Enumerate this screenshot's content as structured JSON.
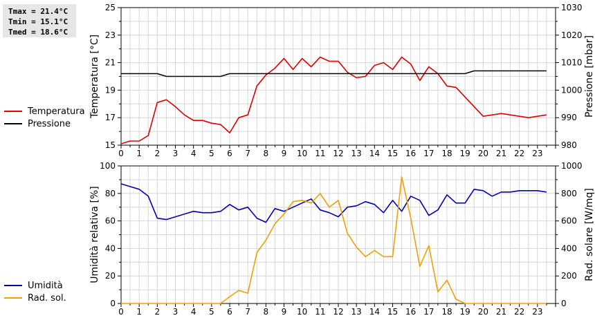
{
  "stats": {
    "tmax": "Tmax = 21.4°C",
    "tmin": "Tmin = 15.1°C",
    "tmed": "Tmed = 18.6°C"
  },
  "legend_top": [
    {
      "label": "Temperatura",
      "color": "#dd0000"
    },
    {
      "label": "Pressione",
      "color": "#000000"
    }
  ],
  "legend_bottom": [
    {
      "label": "Umidità",
      "color": "#0000b0"
    },
    {
      "label": "Rad. sol.",
      "color": "#f0a000"
    }
  ],
  "chart_data": [
    {
      "type": "line",
      "xlim": [
        0,
        24
      ],
      "x_ticks": [
        "0",
        "1",
        "2",
        "3",
        "4",
        "5",
        "6",
        "7",
        "8",
        "9",
        "10",
        "11",
        "12",
        "13",
        "14",
        "15",
        "16",
        "17",
        "18",
        "19",
        "20",
        "21",
        "22",
        "23"
      ],
      "ylabel": "Temperatura [°C]",
      "ylim": [
        15,
        25
      ],
      "y_ticks": [
        "15",
        "17",
        "19",
        "21",
        "23",
        "25"
      ],
      "y2label": "Pressione [mbar]",
      "y2lim": [
        980,
        1030
      ],
      "y2_ticks": [
        "980",
        "990",
        "1000",
        "1010",
        "1020",
        "1030"
      ],
      "grid": true,
      "series": [
        {
          "name": "Temperatura",
          "color": "#dd0000",
          "axis": "left",
          "x": [
            0,
            0.5,
            1,
            1.5,
            2,
            2.5,
            3,
            3.5,
            4,
            4.5,
            5,
            5.5,
            6,
            6.5,
            7,
            7.5,
            8,
            8.5,
            9,
            9.5,
            10,
            10.5,
            11,
            11.5,
            12,
            12.5,
            13,
            13.5,
            14,
            14.5,
            15,
            15.5,
            16,
            16.5,
            17,
            17.5,
            18,
            18.5,
            19,
            19.5,
            20,
            20.5,
            21,
            21.5,
            22,
            22.5,
            23,
            23.5
          ],
          "y": [
            15.1,
            15.3,
            15.3,
            15.7,
            18.1,
            18.3,
            17.8,
            17.2,
            16.8,
            16.8,
            16.6,
            16.5,
            15.9,
            17.0,
            17.2,
            19.3,
            20.1,
            20.6,
            21.3,
            20.5,
            21.3,
            20.7,
            21.4,
            21.1,
            21.1,
            20.3,
            19.9,
            20.0,
            20.8,
            21.0,
            20.5,
            21.4,
            20.9,
            19.7,
            20.7,
            20.2,
            19.3,
            19.2,
            18.5,
            17.8,
            17.1,
            17.2,
            17.3,
            17.2,
            17.1,
            17.0,
            17.1,
            17.2
          ]
        },
        {
          "name": "Pressione",
          "color": "#000000",
          "axis": "right",
          "x": [
            0,
            2,
            2.5,
            5.5,
            6,
            19,
            19.5,
            23.5
          ],
          "y": [
            1006,
            1006,
            1005,
            1005,
            1006,
            1006,
            1007,
            1007
          ]
        }
      ]
    },
    {
      "type": "line",
      "xlim": [
        0,
        24
      ],
      "x_ticks": [
        "0",
        "1",
        "2",
        "3",
        "4",
        "5",
        "6",
        "7",
        "8",
        "9",
        "10",
        "11",
        "12",
        "13",
        "14",
        "15",
        "16",
        "17",
        "18",
        "19",
        "20",
        "21",
        "22",
        "23"
      ],
      "ylabel": "Umidità relativa [%]",
      "ylim": [
        0,
        100
      ],
      "y_ticks": [
        "0",
        "20",
        "40",
        "60",
        "80",
        "100"
      ],
      "y2label": "Rad. solare [W/mq]",
      "y2lim": [
        0,
        1000
      ],
      "y2_ticks": [
        "0",
        "200",
        "400",
        "600",
        "800",
        "1000"
      ],
      "grid": true,
      "series": [
        {
          "name": "Umidità",
          "color": "#0000b0",
          "axis": "left",
          "x": [
            0,
            0.5,
            1,
            1.5,
            2,
            2.5,
            3,
            3.5,
            4,
            4.5,
            5,
            5.5,
            6,
            6.5,
            7,
            7.5,
            8,
            8.5,
            9,
            9.5,
            10,
            10.5,
            11,
            11.5,
            12,
            12.5,
            13,
            13.5,
            14,
            14.5,
            15,
            15.5,
            16,
            16.5,
            17,
            17.5,
            18,
            18.5,
            19,
            19.5,
            20,
            20.5,
            21,
            21.5,
            22,
            22.5,
            23,
            23.5
          ],
          "y": [
            87,
            85,
            83,
            78,
            62,
            61,
            63,
            65,
            67,
            66,
            66,
            67,
            72,
            68,
            70,
            62,
            59,
            69,
            67,
            70,
            73,
            76,
            68,
            66,
            63,
            70,
            71,
            74,
            72,
            66,
            75,
            67,
            78,
            75,
            64,
            68,
            79,
            73,
            73,
            83,
            82,
            78,
            81,
            81,
            82,
            82,
            82,
            81
          ]
        },
        {
          "name": "Rad. sol.",
          "color": "#f0a000",
          "axis": "right",
          "x": [
            0,
            0.5,
            1,
            1.5,
            2,
            2.5,
            3,
            3.5,
            4,
            4.5,
            5,
            5.5,
            6,
            6.5,
            7,
            7.5,
            8,
            8.5,
            9,
            9.5,
            10,
            10.5,
            11,
            11.5,
            12,
            12.5,
            13,
            13.5,
            14,
            14.5,
            15,
            15.5,
            16,
            16.5,
            17,
            17.5,
            18,
            18.5,
            19,
            19.5,
            20,
            20.5,
            21,
            21.5,
            22,
            22.5,
            23,
            23.5
          ],
          "y": [
            0,
            0,
            0,
            0,
            0,
            0,
            0,
            0,
            0,
            0,
            0,
            0,
            50,
            95,
            75,
            370,
            460,
            580,
            650,
            740,
            750,
            730,
            800,
            700,
            750,
            510,
            410,
            340,
            385,
            340,
            340,
            920,
            620,
            270,
            420,
            85,
            170,
            30,
            0,
            0,
            0,
            0,
            0,
            0,
            0,
            0,
            0,
            0
          ]
        }
      ]
    }
  ]
}
